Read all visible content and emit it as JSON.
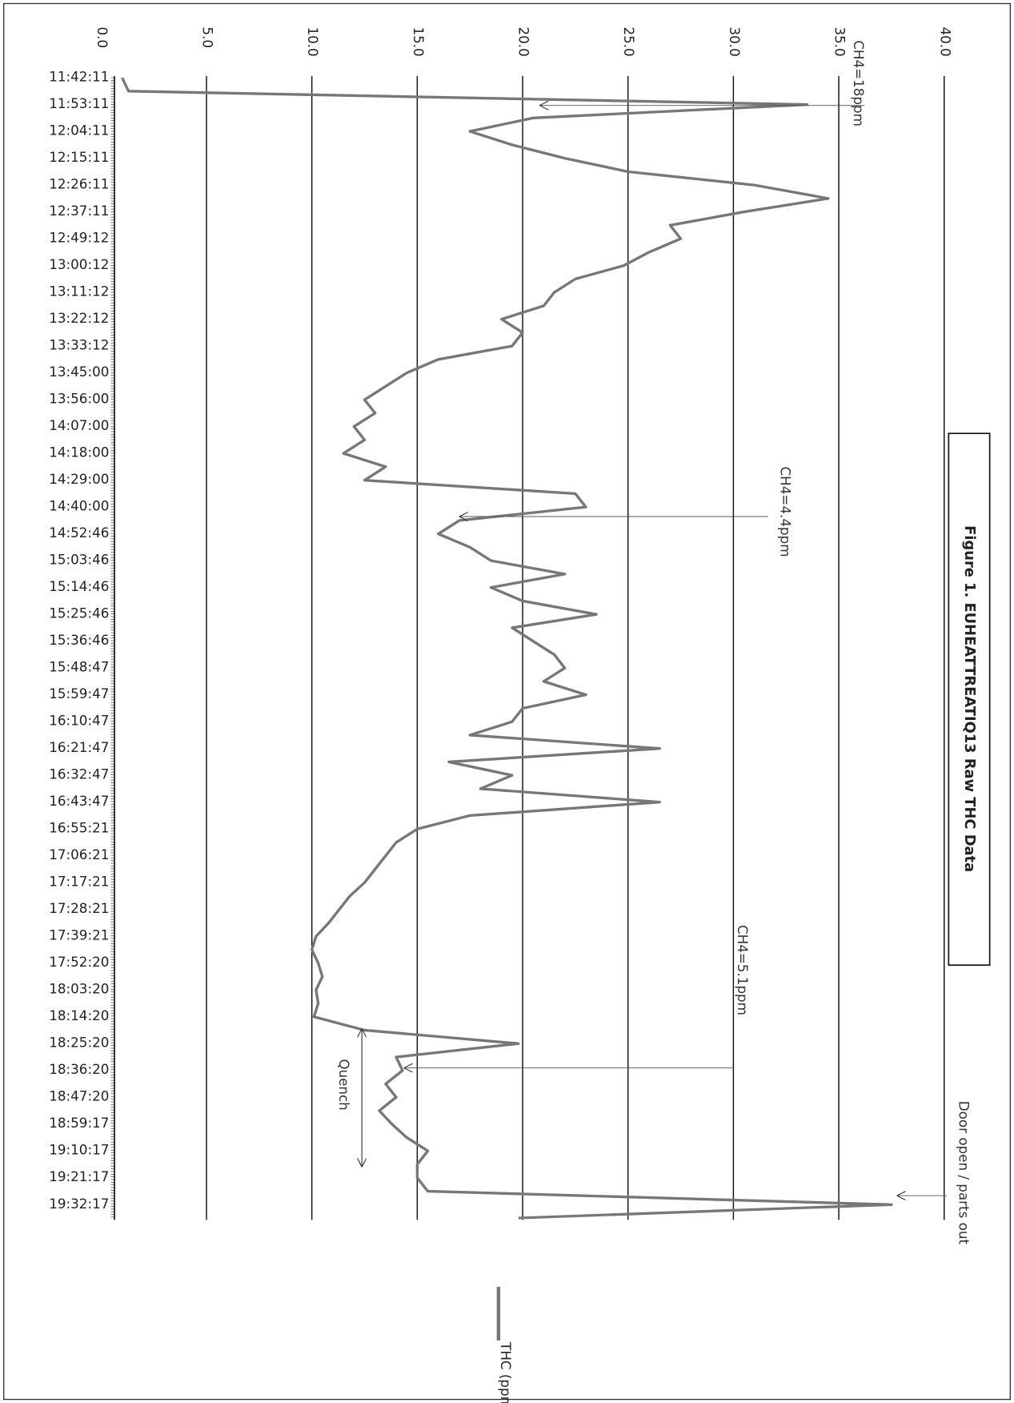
{
  "chart_data": {
    "type": "line",
    "title": "Figure 1. EUHEATTREATIQ13 Raw THC Data",
    "categories": [
      "11:42:11",
      null,
      "11:53:11",
      null,
      "12:04:11",
      null,
      "12:15:11",
      null,
      "12:26:11",
      null,
      "12:37:11",
      null,
      "12:49:12",
      null,
      "13:00:12",
      null,
      "13:11:12",
      null,
      "13:22:12",
      null,
      "13:33:12",
      null,
      "13:45:00",
      null,
      "13:56:00",
      null,
      "14:07:00",
      null,
      "14:18:00",
      null,
      "14:29:00",
      null,
      "14:40:00",
      null,
      "14:52:46",
      null,
      "15:03:46",
      null,
      "15:14:46",
      null,
      "15:25:46",
      null,
      "15:36:46",
      null,
      "15:48:47",
      null,
      "15:59:47",
      null,
      "16:10:47",
      null,
      "16:21:47",
      null,
      "16:32:47",
      null,
      "16:43:47",
      null,
      "16:55:21",
      null,
      "17:06:21",
      null,
      "17:17:21",
      null,
      "17:28:21",
      null,
      "17:39:21",
      null,
      "17:52:20",
      null,
      "18:03:20",
      null,
      "18:14:20",
      null,
      "18:25:20",
      null,
      "18:36:20",
      null,
      "18:47:20",
      null,
      "18:59:17",
      null,
      "19:10:17",
      null,
      "19:21:17",
      null,
      "19:32:17",
      null
    ],
    "series": [
      {
        "name": "THC (ppm)",
        "color": "#777777",
        "values": [
          1.0,
          1.3,
          33.5,
          20.5,
          17.5,
          19.5,
          22.0,
          25.0,
          31.0,
          34.5,
          30.5,
          27.0,
          27.5,
          26.0,
          24.8,
          22.5,
          21.5,
          21.0,
          19.0,
          20.0,
          19.5,
          16.0,
          14.5,
          13.5,
          12.5,
          13.0,
          12.0,
          12.5,
          11.5,
          13.5,
          12.5,
          22.5,
          23.0,
          17.0,
          16.0,
          17.5,
          18.5,
          22.0,
          18.5,
          20.0,
          23.5,
          19.5,
          20.5,
          21.5,
          22.0,
          21.0,
          23.0,
          20.0,
          19.5,
          17.5,
          26.5,
          16.5,
          19.5,
          18.0,
          26.5,
          17.5,
          15.0,
          14.0,
          13.5,
          13.0,
          12.5,
          11.8,
          11.3,
          10.8,
          10.2,
          10.0,
          10.3,
          10.5,
          10.2,
          10.3,
          10.1,
          12.5,
          19.8,
          14.0,
          14.3,
          13.5,
          14.0,
          13.2,
          13.8,
          14.5,
          15.5,
          15.0,
          15.0,
          15.5,
          37.5,
          19.8
        ]
      }
    ],
    "ylim": [
      0,
      40
    ],
    "yticks": [
      {
        "value": 0,
        "label": "0.0"
      },
      {
        "value": 5,
        "label": "5.0"
      },
      {
        "value": 10,
        "label": "10.0"
      },
      {
        "value": 15,
        "label": "15.0"
      },
      {
        "value": 20,
        "label": "20.0"
      },
      {
        "value": 25,
        "label": "25.0"
      },
      {
        "value": 30,
        "label": "30.0"
      },
      {
        "value": 35,
        "label": "35.0"
      },
      {
        "value": 40,
        "label": "40.0"
      }
    ],
    "grid": true,
    "annotations": [
      "CH4=18ppm",
      "CH4=4.4ppm",
      "CH4=5.1ppm",
      "Door open / parts out",
      "Quench"
    ]
  }
}
